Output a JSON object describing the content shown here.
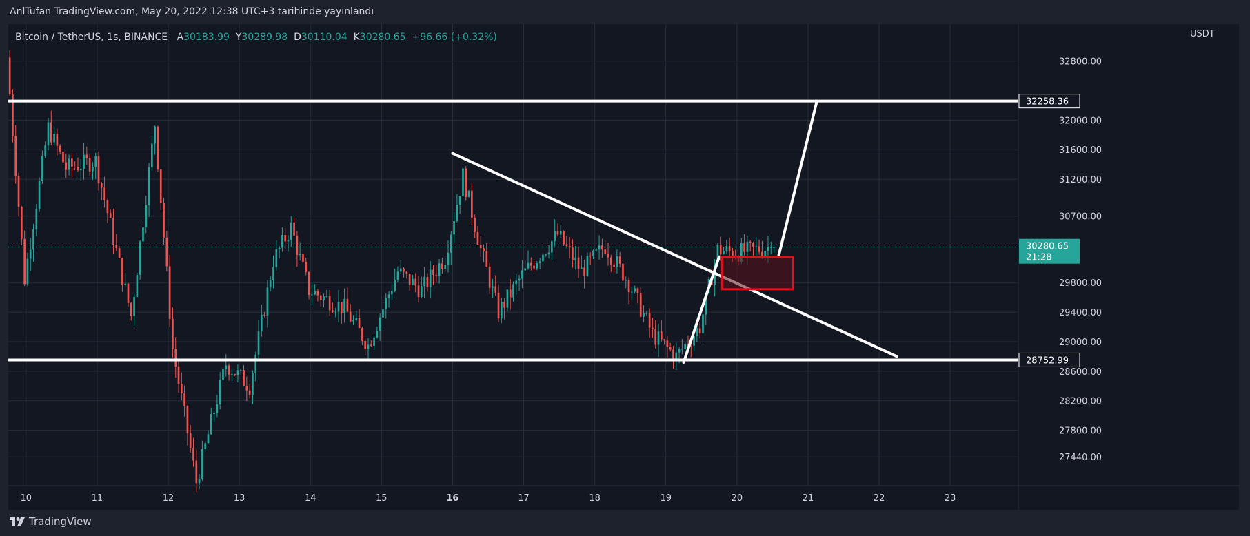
{
  "header": {
    "published_by": "AnlTufan TradingView.com, May 20, 2022 12:38 UTC+3 tarihinde yayınlandı"
  },
  "legend": {
    "symbol": "Bitcoin / TetherUS, 1s, BINANCE",
    "open_label": "A",
    "open": "30183.99",
    "high_label": "Y",
    "high": "30289.98",
    "low_label": "D",
    "low": "30110.04",
    "close_label": "K",
    "close": "30280.65",
    "change": "+96.66 (+0.32%)"
  },
  "price_axis": {
    "currency": "USDT"
  },
  "footer": {
    "brand": "TradingView"
  },
  "colors": {
    "up": "#26a69a",
    "down": "#ef5350",
    "background": "#131722",
    "grid": "#2a2e39",
    "drawing": "#ffffff",
    "box_border": "#e0101e",
    "box_fill": "#5a1119",
    "axis_text": "#d1d4dc"
  },
  "chart_data": {
    "type": "candlestick",
    "symbol": "Bitcoin / TetherUS",
    "interval": "1s",
    "exchange": "BINANCE",
    "currency": "USDT",
    "x_range": [
      "2022-05-09 18:00",
      "2022-05-23 23:00"
    ],
    "y_range": [
      27050,
      33300
    ],
    "grid": true,
    "x_ticks": [
      {
        "label": "10",
        "x": "2022-05-10 00:00",
        "bold": false
      },
      {
        "label": "11",
        "x": "2022-05-11 00:00",
        "bold": false
      },
      {
        "label": "12",
        "x": "2022-05-12 00:00",
        "bold": false
      },
      {
        "label": "13",
        "x": "2022-05-13 00:00",
        "bold": false
      },
      {
        "label": "14",
        "x": "2022-05-14 00:00",
        "bold": false
      },
      {
        "label": "15",
        "x": "2022-05-15 00:00",
        "bold": false
      },
      {
        "label": "16",
        "x": "2022-05-16 00:00",
        "bold": true
      },
      {
        "label": "17",
        "x": "2022-05-17 00:00",
        "bold": false
      },
      {
        "label": "18",
        "x": "2022-05-18 00:00",
        "bold": false
      },
      {
        "label": "19",
        "x": "2022-05-19 00:00",
        "bold": false
      },
      {
        "label": "20",
        "x": "2022-05-20 00:00",
        "bold": false
      },
      {
        "label": "21",
        "x": "2022-05-21 00:00",
        "bold": false
      },
      {
        "label": "22",
        "x": "2022-05-22 00:00",
        "bold": false
      },
      {
        "label": "23",
        "x": "2022-05-23 00:00",
        "bold": false
      }
    ],
    "y_ticks": [
      {
        "value": 32800,
        "label": "32800.00"
      },
      {
        "value": 32000,
        "label": "32000.00"
      },
      {
        "value": 31600,
        "label": "31600.00"
      },
      {
        "value": 31200,
        "label": "31200.00"
      },
      {
        "value": 30700,
        "label": "30700.00"
      },
      {
        "value": 29800,
        "label": "29800.00"
      },
      {
        "value": 29400,
        "label": "29400.00"
      },
      {
        "value": 29000,
        "label": "29000.00"
      },
      {
        "value": 28600,
        "label": "28600.00"
      },
      {
        "value": 28200,
        "label": "28200.00"
      },
      {
        "value": 27800,
        "label": "27800.00"
      },
      {
        "value": 27440,
        "label": "27440.00"
      }
    ],
    "price_marks": [
      {
        "value": 32258.36,
        "label": "32258.36",
        "style": "level"
      },
      {
        "value": 28752.99,
        "label": "28752.99",
        "style": "level"
      },
      {
        "value": 30280.65,
        "label": "30280.65",
        "sublabel": "21:28",
        "style": "last"
      }
    ],
    "anchors": [
      {
        "t": "2022-05-09 18:00",
        "p": 32850
      },
      {
        "t": "2022-05-10 00:00",
        "p": 29850
      },
      {
        "t": "2022-05-10 08:00",
        "p": 31900
      },
      {
        "t": "2022-05-10 14:00",
        "p": 31350
      },
      {
        "t": "2022-05-11 00:00",
        "p": 31450
      },
      {
        "t": "2022-05-11 12:00",
        "p": 29350
      },
      {
        "t": "2022-05-11 20:00",
        "p": 31950
      },
      {
        "t": "2022-05-12 02:00",
        "p": 28900
      },
      {
        "t": "2022-05-12 10:00",
        "p": 27100
      },
      {
        "t": "2022-05-12 20:00",
        "p": 28700
      },
      {
        "t": "2022-05-13 04:00",
        "p": 28400
      },
      {
        "t": "2022-05-13 12:00",
        "p": 30100
      },
      {
        "t": "2022-05-13 18:00",
        "p": 30550
      },
      {
        "t": "2022-05-14 00:00",
        "p": 29700
      },
      {
        "t": "2022-05-14 12:00",
        "p": 29450
      },
      {
        "t": "2022-05-14 20:00",
        "p": 28950
      },
      {
        "t": "2022-05-15 06:00",
        "p": 29950
      },
      {
        "t": "2022-05-15 14:00",
        "p": 29700
      },
      {
        "t": "2022-05-15 22:00",
        "p": 30150
      },
      {
        "t": "2022-05-16 04:00",
        "p": 31250
      },
      {
        "t": "2022-05-16 10:00",
        "p": 30250
      },
      {
        "t": "2022-05-16 16:00",
        "p": 29400
      },
      {
        "t": "2022-05-17 00:00",
        "p": 29900
      },
      {
        "t": "2022-05-17 12:00",
        "p": 30450
      },
      {
        "t": "2022-05-17 20:00",
        "p": 29950
      },
      {
        "t": "2022-05-18 04:00",
        "p": 30300
      },
      {
        "t": "2022-05-18 12:00",
        "p": 29800
      },
      {
        "t": "2022-05-18 20:00",
        "p": 29100
      },
      {
        "t": "2022-05-19 04:00",
        "p": 28800
      },
      {
        "t": "2022-05-19 12:00",
        "p": 29200
      },
      {
        "t": "2022-05-19 18:00",
        "p": 30250
      },
      {
        "t": "2022-05-20 00:00",
        "p": 30200
      },
      {
        "t": "2022-05-20 12:00",
        "p": 30280.65
      }
    ],
    "drawings": [
      {
        "kind": "horizontal_line",
        "price": 32258.36,
        "from": "2022-05-09 18:00"
      },
      {
        "kind": "horizontal_line",
        "price": 28752.99,
        "from": "2022-05-09 18:00"
      },
      {
        "kind": "trend_line",
        "from": {
          "t": "2022-05-16 00:00",
          "p": 31550
        },
        "to": {
          "t": "2022-05-22 06:00",
          "p": 28800
        }
      },
      {
        "kind": "trend_line",
        "from": {
          "t": "2022-05-19 06:00",
          "p": 28720
        },
        "to": {
          "t": "2022-05-19 18:00",
          "p": 30150
        }
      },
      {
        "kind": "trend_line",
        "from": {
          "t": "2022-05-20 14:00",
          "p": 30150
        },
        "to": {
          "t": "2022-05-21 03:00",
          "p": 32258.36
        }
      },
      {
        "kind": "rectangle",
        "from": {
          "t": "2022-05-19 19:00",
          "p": 30150
        },
        "to": {
          "t": "2022-05-20 19:00",
          "p": 29710
        }
      }
    ]
  }
}
